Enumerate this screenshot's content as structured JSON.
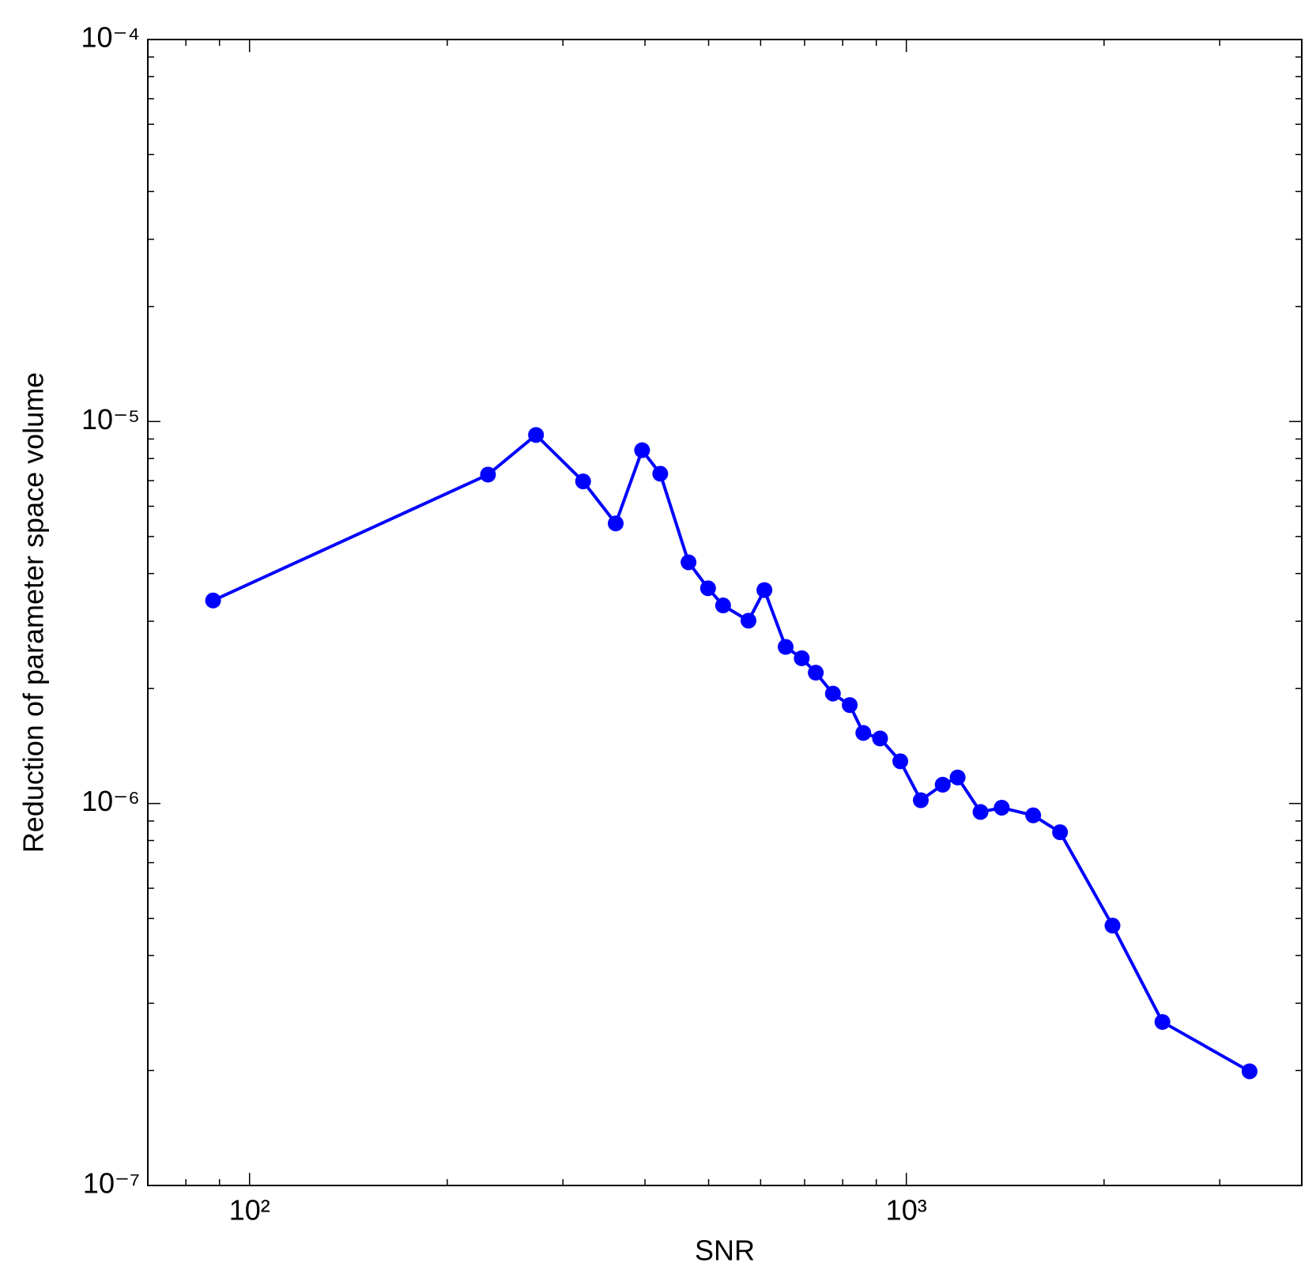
{
  "chart_data": {
    "type": "line",
    "x_label": "SNR",
    "y_label": "Reduction of parameter space volume",
    "x": [
      88.0,
      230.7,
      273,
      322,
      361,
      396,
      422,
      466,
      499,
      526,
      575,
      608,
      655,
      693,
      728,
      773,
      820,
      860,
      912,
      979,
      1052,
      1136,
      1197,
      1297,
      1397,
      1560,
      1714,
      2060,
      2454,
      3331
    ],
    "series": [
      {
        "color": "#0000ff",
        "values": [
          3.4e-06,
          7.26e-06,
          9.22e-06,
          6.97e-06,
          5.41e-06,
          8.41e-06,
          7.3e-06,
          4.28e-06,
          3.66e-06,
          3.3e-06,
          3.01e-06,
          3.62e-06,
          2.57e-06,
          2.4e-06,
          2.2e-06,
          1.94e-06,
          1.81e-06,
          1.53e-06,
          1.48e-06,
          1.29e-06,
          1.02e-06,
          1.12e-06,
          1.17e-06,
          9.5e-07,
          9.75e-07,
          9.31e-07,
          8.41e-07,
          4.79e-07,
          2.68e-07,
          1.99e-07
        ]
      }
    ],
    "xlim": [
      70,
      4000
    ],
    "ylim": [
      1e-07,
      0.0001
    ],
    "xticks": [
      {
        "value": 100,
        "label": "10²"
      },
      {
        "value": 1000,
        "label": "10³"
      }
    ],
    "yticks": [
      {
        "value": 1e-07,
        "label": "10⁻⁷"
      },
      {
        "value": 1e-06,
        "label": "10⁻⁶"
      },
      {
        "value": 1e-05,
        "label": "10⁻⁵"
      },
      {
        "value": 0.0001,
        "label": "10⁻⁴"
      }
    ],
    "xscale": "log",
    "yscale": "log",
    "grid": false,
    "minor_ticks": true,
    "markers": true
  }
}
